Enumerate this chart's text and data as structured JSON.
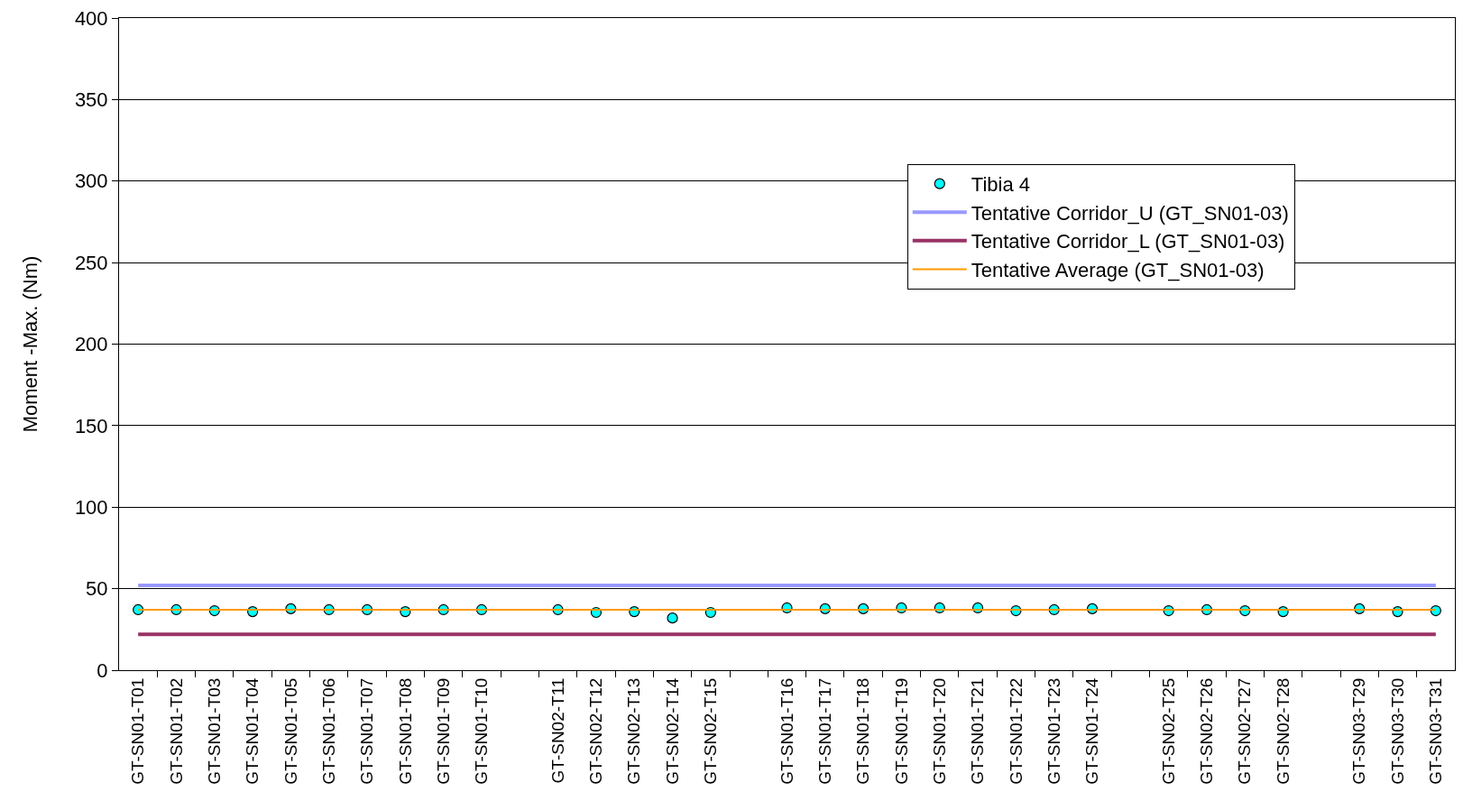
{
  "chart_data": {
    "type": "scatter",
    "ylabel": "Moment -Max. (Nm)",
    "categories": [
      "GT-SN01-T01",
      "GT-SN01-T02",
      "GT-SN01-T03",
      "GT-SN01-T04",
      "GT-SN01-T05",
      "GT-SN01-T06",
      "GT-SN01-T07",
      "GT-SN01-T08",
      "GT-SN01-T09",
      "GT-SN01-T10",
      null,
      "GT-SN02-T11",
      "GT-SN02-T12",
      "GT-SN02-T13",
      "GT-SN02-T14",
      "GT-SN02-T15",
      null,
      "GT-SN01-T16",
      "GT-SN01-T17",
      "GT-SN01-T18",
      "GT-SN01-T19",
      "GT-SN01-T20",
      "GT-SN01-T21",
      "GT-SN01-T22",
      "GT-SN01-T23",
      "GT-SN01-T24",
      null,
      "GT-SN02-T25",
      "GT-SN02-T26",
      "GT-SN02-T27",
      "GT-SN02-T28",
      null,
      "GT-SN03-T29",
      "GT-SN03-T30",
      "GT-SN03-T31"
    ],
    "series": [
      {
        "name": "Tibia 4",
        "color": "#00ffff",
        "marker": "circle",
        "values": [
          37.1,
          37.1,
          36.5,
          35.9,
          37.7,
          37.1,
          37.1,
          35.9,
          37.1,
          37.1,
          null,
          37.1,
          35.4,
          35.9,
          32.0,
          35.4,
          null,
          38.2,
          37.7,
          37.7,
          38.2,
          38.2,
          38.2,
          36.5,
          37.1,
          37.7,
          null,
          36.5,
          37.1,
          36.5,
          35.9,
          null,
          37.7,
          35.9,
          36.5
        ]
      },
      {
        "name": "Tentative Corridor_U (GT_SN01-03)",
        "type": "line",
        "color": "#9999ff",
        "values": [
          52,
          52,
          52,
          52,
          52,
          52,
          52,
          52,
          52,
          52,
          52,
          52,
          52,
          52,
          52,
          52,
          52,
          52,
          52,
          52,
          52,
          52,
          52,
          52,
          52,
          52,
          52,
          52,
          52,
          52,
          52,
          52,
          52,
          52,
          52
        ]
      },
      {
        "name": "Tentative Corridor_L (GT_SN01-03)",
        "type": "line",
        "color": "#993366",
        "values": [
          22,
          22,
          22,
          22,
          22,
          22,
          22,
          22,
          22,
          22,
          22,
          22,
          22,
          22,
          22,
          22,
          22,
          22,
          22,
          22,
          22,
          22,
          22,
          22,
          22,
          22,
          22,
          22,
          22,
          22,
          22,
          22,
          22,
          22,
          22
        ]
      },
      {
        "name": "Tentative Average (GT_SN01-03)",
        "type": "line",
        "color": "#ff9900",
        "values": [
          37,
          37,
          37,
          37,
          37,
          37,
          37,
          37,
          37,
          37,
          37,
          37,
          37,
          37,
          37,
          37,
          37,
          37,
          37,
          37,
          37,
          37,
          37,
          37,
          37,
          37,
          37,
          37,
          37,
          37,
          37,
          37,
          37,
          37,
          37
        ]
      }
    ],
    "ylim": [
      0,
      400
    ],
    "yticks": [
      0,
      50,
      100,
      150,
      200,
      250,
      300,
      350,
      400
    ],
    "grid": "y",
    "legend": "right",
    "line_style": "solid"
  }
}
